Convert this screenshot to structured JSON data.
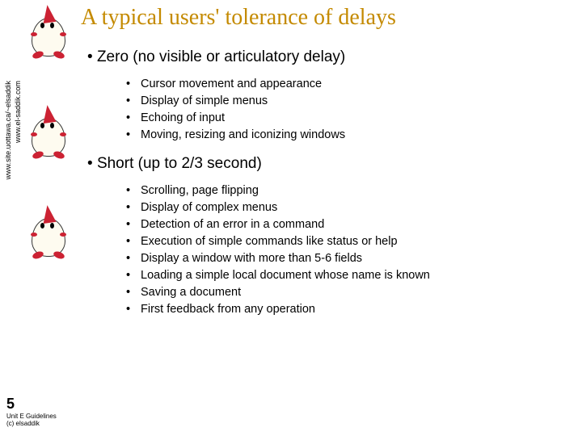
{
  "title": "A typical users' tolerance of delays",
  "sidebar_urls": {
    "url1": "www.site.uottawa.ca/~elsaddik",
    "url2": "www.el-saddik.com"
  },
  "sections": [
    {
      "heading": "Zero (no visible or articulatory delay)",
      "items": [
        "Cursor movement and appearance",
        "Display of simple menus",
        "Echoing of input",
        "Moving, resizing and iconizing windows"
      ]
    },
    {
      "heading": "Short (up to 2/3 second)",
      "items": [
        "Scrolling, page flipping",
        "Display of complex menus",
        "Detection of an error in a command",
        "Execution of simple commands like status or help",
        "Display a window with more than 5-6 fields",
        "Loading a simple local  document whose name is known",
        "Saving a document",
        "First feedback from any operation"
      ]
    }
  ],
  "footer": {
    "page": "5",
    "line1": "Unit E Guidelines",
    "line2": "(c) elsaddik"
  },
  "colors": {
    "title": "#c48a00",
    "text": "#000000",
    "accent": "#cc2233",
    "bg": "#ffffff"
  }
}
